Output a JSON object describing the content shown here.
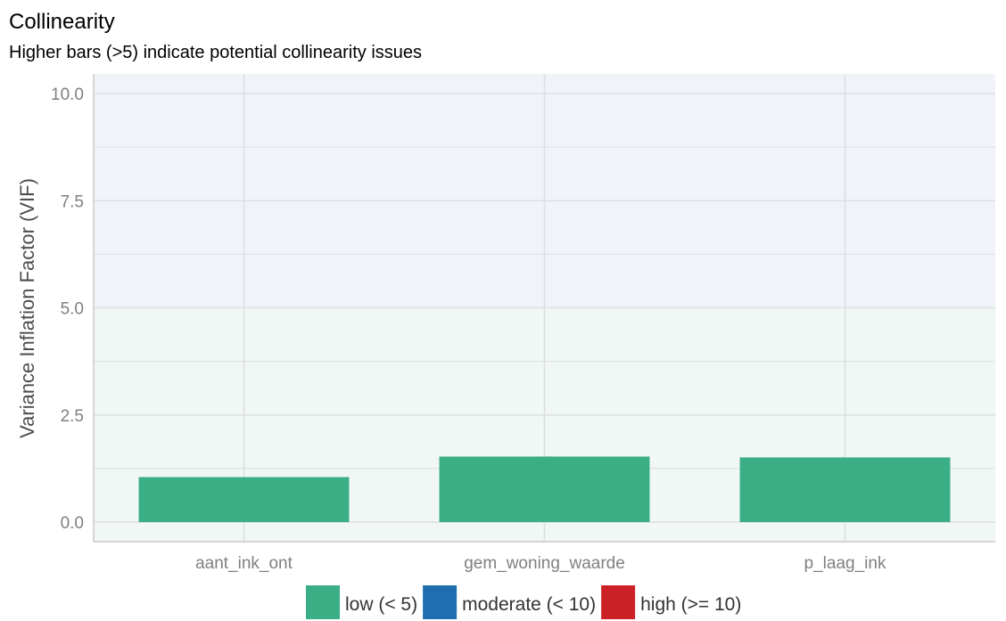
{
  "chart_data": {
    "type": "bar",
    "title": "Collinearity",
    "subtitle": "Higher bars (>5) indicate potential collinearity issues",
    "xlabel": "",
    "ylabel": "Variance Inflation Factor (VIF)",
    "categories": [
      "aant_ink_ont",
      "gem_woning_waarde",
      "p_laag_ink"
    ],
    "values": [
      1.05,
      1.53,
      1.51
    ],
    "bar_group": [
      "low (< 5)",
      "low (< 5)",
      "low (< 5)"
    ],
    "ylim": [
      0,
      10.5
    ],
    "yticks": [
      "0.0",
      "2.5",
      "5.0",
      "7.5",
      "10.0"
    ],
    "ytick_values": [
      0,
      2.5,
      5,
      7.5,
      10
    ],
    "background_zones": [
      {
        "from": 0,
        "to": 5,
        "color": "#f0f7f4"
      },
      {
        "from": 5,
        "to": 10.5,
        "color": "#f0f4f8"
      }
    ],
    "grid": true,
    "legend_position": "bottom",
    "legend": [
      {
        "label": "low (< 5)",
        "color": "#3aaf85"
      },
      {
        "label": "moderate (< 10)",
        "color": "#1f6fb0"
      },
      {
        "label": "high (>= 10)",
        "color": "#cc2127"
      }
    ]
  }
}
